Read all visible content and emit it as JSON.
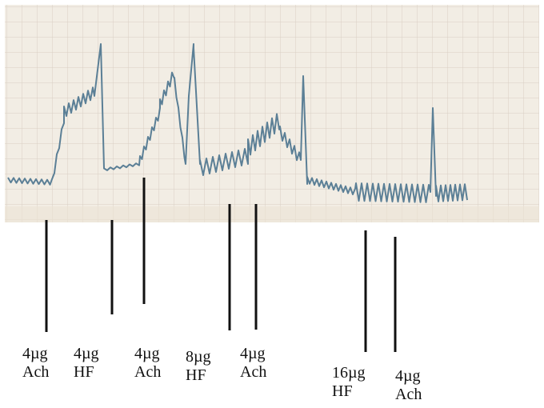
{
  "markers": [
    {
      "dose": "4µg",
      "drug": "Ach"
    },
    {
      "dose": "4µg",
      "drug": "HF"
    },
    {
      "dose": "4µg",
      "drug": "Ach"
    },
    {
      "dose": "8µg",
      "drug": "HF"
    },
    {
      "dose": "4µg",
      "drug": "Ach"
    },
    {
      "dose": "16µg",
      "drug": "HF"
    },
    {
      "dose": "4µg",
      "drug": "Ach"
    }
  ]
}
